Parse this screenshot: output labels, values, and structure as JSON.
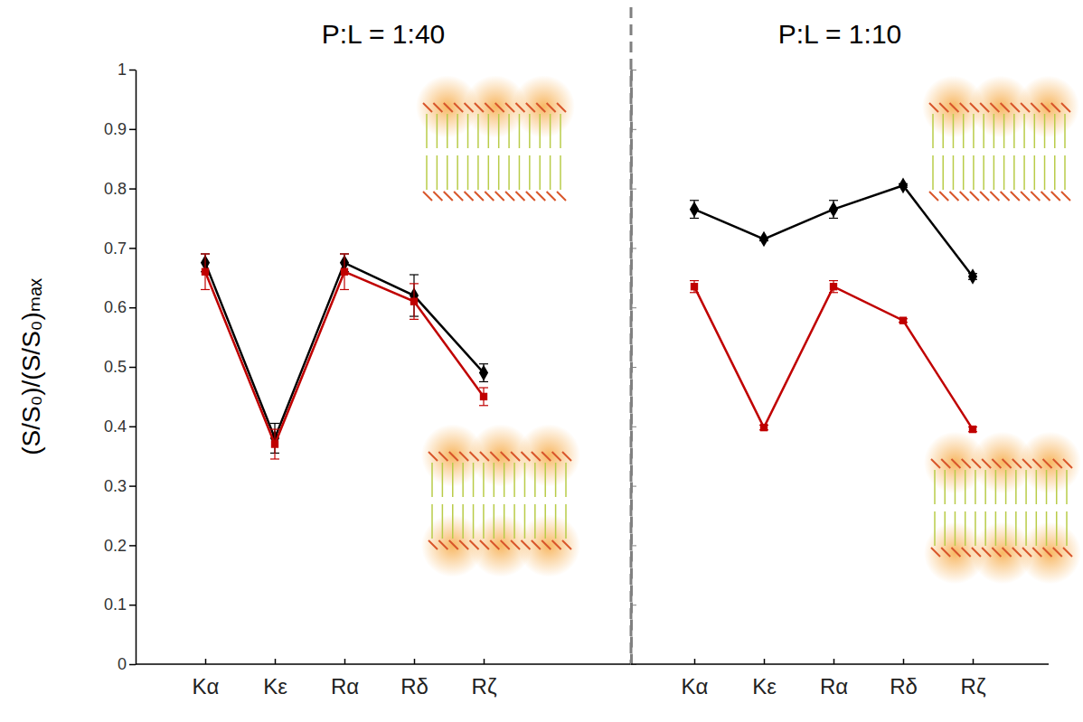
{
  "chart_data": [
    {
      "type": "line",
      "title": "P:L = 1:40",
      "ylabel": "(S/S₀)/(S/S₀)ₘₐₓ",
      "categories": [
        "Kα",
        "Kε",
        "Rα",
        "Rδ",
        "Rζ"
      ],
      "ylim": [
        0,
        1
      ],
      "yticks": [
        0,
        0.1,
        0.2,
        0.3,
        0.4,
        0.5,
        0.6,
        0.7,
        0.8,
        0.9,
        1
      ],
      "series": [
        {
          "color": "#000000",
          "marker": "diamond",
          "values": [
            0.675,
            0.38,
            0.675,
            0.62,
            0.49
          ],
          "errors": [
            0.015,
            0.025,
            0.015,
            0.035,
            0.015
          ]
        },
        {
          "color": "#c00000",
          "marker": "square",
          "values": [
            0.66,
            0.37,
            0.66,
            0.61,
            0.45
          ],
          "errors": [
            0.03,
            0.025,
            0.03,
            0.03,
            0.015
          ]
        }
      ]
    },
    {
      "type": "line",
      "title": "P:L = 1:10",
      "categories": [
        "Kα",
        "Kε",
        "Rα",
        "Rδ",
        "Rζ"
      ],
      "ylim": [
        0,
        1
      ],
      "yticks": [
        0,
        0.1,
        0.2,
        0.3,
        0.4,
        0.5,
        0.6,
        0.7,
        0.8,
        0.9,
        1
      ],
      "tick_labels": "x",
      "series": [
        {
          "color": "#000000",
          "marker": "diamond",
          "values": [
            0.765,
            0.715,
            0.765,
            0.805,
            0.652
          ],
          "errors": [
            0.015,
            0.003,
            0.015,
            0.003,
            0.005
          ]
        },
        {
          "color": "#c00000",
          "marker": "square",
          "values": [
            0.635,
            0.398,
            0.635,
            0.578,
            0.395
          ],
          "errors": [
            0.01,
            0.004,
            0.01,
            0.003,
            0.004
          ]
        }
      ]
    }
  ]
}
